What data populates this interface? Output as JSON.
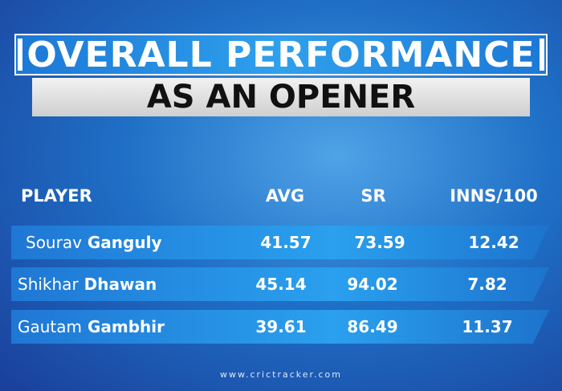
{
  "header": {
    "title": "OVERALL PERFORMANCE",
    "subtitle": "AS AN OPENER"
  },
  "table": {
    "columns": [
      "PLAYER",
      "AVG",
      "SR",
      "INNS/100"
    ],
    "rows": [
      {
        "first": "Sourav",
        "last": "Ganguly",
        "avg": "41.57",
        "sr": "73.59",
        "inns": "12.42"
      },
      {
        "first": "Shikhar",
        "last": "Dhawan",
        "avg": "45.14",
        "sr": "94.02",
        "inns": "7.82"
      },
      {
        "first": "Gautam",
        "last": "Gambhir",
        "avg": "39.61",
        "sr": "86.49",
        "inns": "11.37"
      }
    ]
  },
  "footer": "www.crictracker.com"
}
